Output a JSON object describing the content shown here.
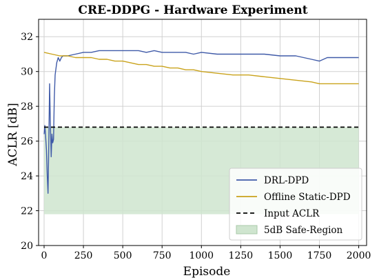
{
  "chart_data": {
    "type": "line",
    "title": "CRE-DDPG - Hardware Experiment",
    "xlabel": "Episode",
    "ylabel": "ACLR [dB]",
    "xlim": [
      -35,
      2050
    ],
    "ylim": [
      20,
      33
    ],
    "xticks": [
      0,
      250,
      500,
      750,
      1000,
      1250,
      1500,
      1750,
      2000
    ],
    "yticks": [
      20,
      22,
      24,
      26,
      28,
      30,
      32
    ],
    "grid": true,
    "legend_position": "lower-right",
    "series": [
      {
        "name": "DRL-DPD",
        "color": "#3f5aa8",
        "style": "solid",
        "x": [
          0,
          5,
          10,
          15,
          20,
          25,
          30,
          35,
          40,
          45,
          50,
          55,
          60,
          65,
          70,
          80,
          90,
          100,
          110,
          120,
          150,
          200,
          250,
          300,
          350,
          400,
          450,
          500,
          550,
          600,
          650,
          700,
          750,
          800,
          850,
          900,
          950,
          1000,
          1100,
          1200,
          1300,
          1400,
          1500,
          1600,
          1700,
          1750,
          1800,
          1900,
          2000
        ],
        "y": [
          26.4,
          26.9,
          26.2,
          25.5,
          24.0,
          23.0,
          25.8,
          29.3,
          27.0,
          25.1,
          26.4,
          25.9,
          26.1,
          28.5,
          29.8,
          30.5,
          30.8,
          30.6,
          30.8,
          30.9,
          30.9,
          31.0,
          31.1,
          31.1,
          31.2,
          31.2,
          31.2,
          31.2,
          31.2,
          31.2,
          31.1,
          31.2,
          31.1,
          31.1,
          31.1,
          31.1,
          31.0,
          31.1,
          31.0,
          31.0,
          31.0,
          31.0,
          30.9,
          30.9,
          30.7,
          30.6,
          30.8,
          30.8,
          30.8
        ]
      },
      {
        "name": "Offline Static-DPD",
        "color": "#c9a21a",
        "style": "solid",
        "x": [
          0,
          50,
          100,
          150,
          200,
          250,
          300,
          350,
          400,
          450,
          500,
          550,
          600,
          650,
          700,
          750,
          800,
          850,
          900,
          950,
          1000,
          1100,
          1200,
          1300,
          1400,
          1500,
          1600,
          1700,
          1750,
          1800,
          1900,
          2000
        ],
        "y": [
          31.1,
          31.0,
          30.9,
          30.9,
          30.8,
          30.8,
          30.8,
          30.7,
          30.7,
          30.6,
          30.6,
          30.5,
          30.4,
          30.4,
          30.3,
          30.3,
          30.2,
          30.2,
          30.1,
          30.1,
          30.0,
          29.9,
          29.8,
          29.8,
          29.7,
          29.6,
          29.5,
          29.4,
          29.3,
          29.3,
          29.3,
          29.3
        ]
      },
      {
        "name": "Input ACLR",
        "color": "#000000",
        "style": "dashed",
        "x": [
          0,
          2000
        ],
        "y": [
          26.8,
          26.8
        ]
      }
    ],
    "regions": [
      {
        "name": "5dB Safe-Region",
        "color": "#cfe5cf",
        "x": [
          0,
          2000
        ],
        "y": [
          21.8,
          26.8
        ]
      }
    ]
  }
}
